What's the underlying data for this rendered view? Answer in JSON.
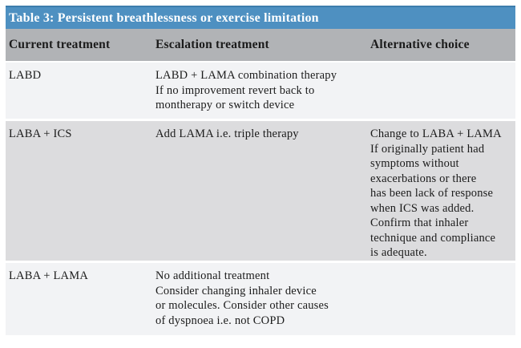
{
  "title": "Table 3: Persistent breathlessness or exercise limitation",
  "columns": {
    "current": "Current treatment",
    "escalation": "Escalation treatment",
    "alternative": "Alternative choice"
  },
  "rows": [
    {
      "current": "LABD",
      "escalation": "LABD + LAMA combination therapy\nIf no improvement revert back to\nmontherapy or switch device",
      "alternative": ""
    },
    {
      "current": "LABA + ICS",
      "escalation": "Add LAMA i.e. triple therapy",
      "alternative": "Change to LABA + LAMA\nIf originally patient had\nsymptoms without\nexacerbations or there\nhas been lack of response\nwhen ICS was added.\nConfirm that inhaler\ntechnique and compliance\nis adequate."
    },
    {
      "current": "LABA + LAMA",
      "escalation": "No additional treatment\nConsider changing inhaler device\nor molecules. Consider other causes\nof dyspnoea i.e. not COPD",
      "alternative": ""
    }
  ],
  "colors": {
    "title_bar_blue": "#4e90c1",
    "title_bar_top_border": "#3c7dad",
    "header_row_gray": "#b1b3b6",
    "row_light_gray": "#f2f3f5",
    "row_mid_gray": "#dcdcde",
    "title_text": "#ffffff",
    "body_text": "#1b1b1b",
    "background": "#ffffff"
  }
}
